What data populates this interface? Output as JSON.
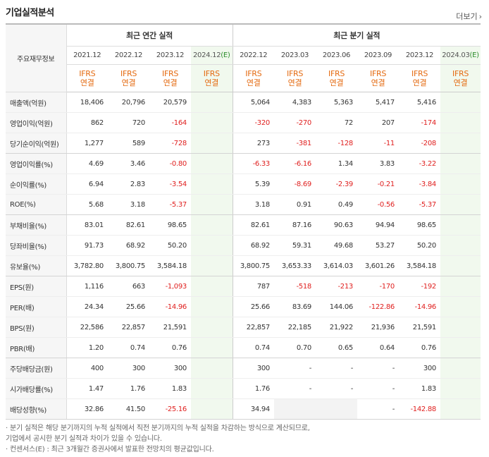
{
  "title": "기업실적분석",
  "more_label": "더보기",
  "header": {
    "corner_label": "주요재무정보",
    "annual_label": "최근 연간 실적",
    "quarter_label": "최근 분기 실적",
    "annual_periods": [
      "2021.12",
      "2022.12",
      "2023.12",
      "2024.12"
    ],
    "annual_est_mark": "(E)",
    "quarter_periods": [
      "2022.12",
      "2023.03",
      "2023.06",
      "2023.09",
      "2023.12",
      "2024.03"
    ],
    "quarter_est_mark": "(E)",
    "ifrs_top": "IFRS",
    "ifrs_bottom": "연결"
  },
  "rows": [
    {
      "label": "매출액(억원)",
      "annual": [
        "18,406",
        "20,796",
        "20,579",
        ""
      ],
      "quarter": [
        "5,064",
        "4,383",
        "5,363",
        "5,417",
        "5,416",
        ""
      ]
    },
    {
      "label": "영업이익(억원)",
      "annual": [
        "862",
        "720",
        "-164",
        ""
      ],
      "quarter": [
        "-320",
        "-270",
        "72",
        "207",
        "-174",
        ""
      ]
    },
    {
      "label": "당기순이익(억원)",
      "annual": [
        "1,277",
        "589",
        "-728",
        ""
      ],
      "quarter": [
        "273",
        "-381",
        "-128",
        "-11",
        "-208",
        ""
      ]
    },
    {
      "label": "영업이익률(%)",
      "annual": [
        "4.69",
        "3.46",
        "-0.80",
        ""
      ],
      "quarter": [
        "-6.33",
        "-6.16",
        "1.34",
        "3.83",
        "-3.22",
        ""
      ]
    },
    {
      "label": "순이익률(%)",
      "annual": [
        "6.94",
        "2.83",
        "-3.54",
        ""
      ],
      "quarter": [
        "5.39",
        "-8.69",
        "-2.39",
        "-0.21",
        "-3.84",
        ""
      ]
    },
    {
      "label": "ROE(%)",
      "annual": [
        "5.68",
        "3.18",
        "-5.37",
        ""
      ],
      "quarter": [
        "3.18",
        "0.91",
        "0.49",
        "-0.56",
        "-5.37",
        ""
      ]
    },
    {
      "label": "부채비율(%)",
      "annual": [
        "83.01",
        "82.61",
        "98.65",
        ""
      ],
      "quarter": [
        "82.61",
        "87.16",
        "90.63",
        "94.94",
        "98.65",
        ""
      ]
    },
    {
      "label": "당좌비율(%)",
      "annual": [
        "91.73",
        "68.92",
        "50.20",
        ""
      ],
      "quarter": [
        "68.92",
        "59.31",
        "49.68",
        "53.27",
        "50.20",
        ""
      ]
    },
    {
      "label": "유보율(%)",
      "annual": [
        "3,782.80",
        "3,800.75",
        "3,584.18",
        ""
      ],
      "quarter": [
        "3,800.75",
        "3,653.33",
        "3,614.03",
        "3,601.26",
        "3,584.18",
        ""
      ]
    },
    {
      "label": "EPS(원)",
      "annual": [
        "1,116",
        "663",
        "-1,093",
        ""
      ],
      "quarter": [
        "787",
        "-518",
        "-213",
        "-170",
        "-192",
        ""
      ]
    },
    {
      "label": "PER(배)",
      "annual": [
        "24.34",
        "25.66",
        "-14.96",
        ""
      ],
      "quarter": [
        "25.66",
        "83.69",
        "144.06",
        "-122.86",
        "-14.96",
        ""
      ]
    },
    {
      "label": "BPS(원)",
      "annual": [
        "22,586",
        "22,857",
        "21,591",
        ""
      ],
      "quarter": [
        "22,857",
        "22,185",
        "21,922",
        "21,936",
        "21,591",
        ""
      ]
    },
    {
      "label": "PBR(배)",
      "annual": [
        "1.20",
        "0.74",
        "0.76",
        ""
      ],
      "quarter": [
        "0.74",
        "0.70",
        "0.65",
        "0.64",
        "0.76",
        ""
      ]
    },
    {
      "label": "주당배당금(원)",
      "annual": [
        "400",
        "300",
        "300",
        ""
      ],
      "quarter": [
        "300",
        "-",
        "-",
        "-",
        "300",
        ""
      ]
    },
    {
      "label": "시가배당률(%)",
      "annual": [
        "1.47",
        "1.76",
        "1.83",
        ""
      ],
      "quarter": [
        "1.76",
        "-",
        "-",
        "-",
        "1.83",
        ""
      ]
    },
    {
      "label": "배당성향(%)",
      "annual": [
        "32.86",
        "41.50",
        "-25.16",
        ""
      ],
      "quarter": [
        "34.94",
        "",
        "",
        "-",
        "-142.88",
        ""
      ]
    }
  ],
  "notes": [
    "· 분기 실적은 해당 분기까지의 누적 실적에서 직전 분기까지의 누적 실적을 차감하는 방식으로 계산되므로,",
    "   기업에서 공시한 분기 실적과 차이가 있을 수 있습니다.",
    "· 컨센서스(E) : 최근 3개월간 증권사에서 발표한 전망치의 평균값입니다."
  ]
}
